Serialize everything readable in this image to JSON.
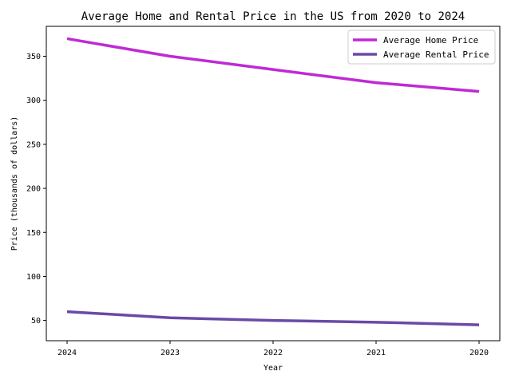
{
  "chart_data": {
    "type": "line",
    "title": "Average Home and Rental Price in the US from 2020 to 2024",
    "xlabel": "Year",
    "ylabel": "Price (thousands of dollars)",
    "categories": [
      "2024",
      "2023",
      "2022",
      "2021",
      "2020"
    ],
    "ylim": [
      27,
      384
    ],
    "yticks": [
      50,
      100,
      150,
      200,
      250,
      300,
      350
    ],
    "grid": false,
    "legend_position": "top-right",
    "series": [
      {
        "name": "Average Home Price",
        "values": [
          370,
          350,
          335,
          320,
          310
        ],
        "color": "#bf2ad4"
      },
      {
        "name": "Average Rental Price",
        "values": [
          60,
          53,
          50,
          48,
          45
        ],
        "color": "#6a4aa6"
      }
    ]
  }
}
